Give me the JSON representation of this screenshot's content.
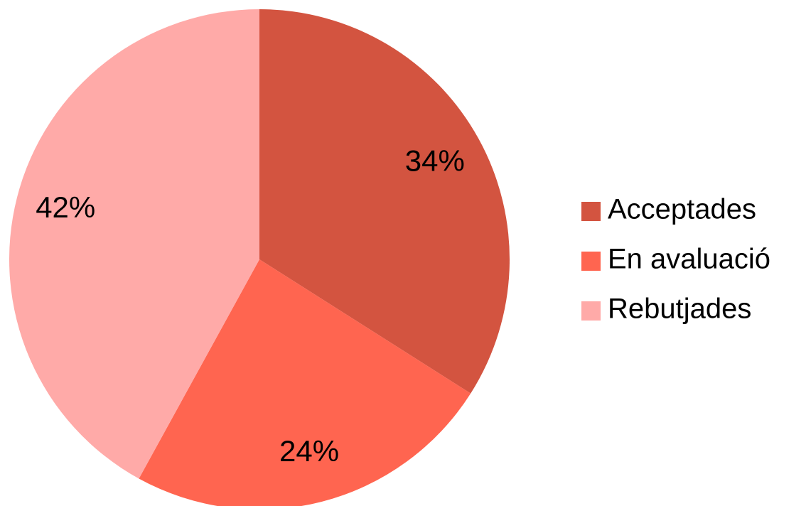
{
  "chart_data": {
    "type": "pie",
    "categories": [
      "Acceptades",
      "En avaluació",
      "Rebutjades"
    ],
    "values": [
      34,
      24,
      42
    ],
    "value_labels": [
      "34%",
      "24%",
      "42%"
    ],
    "colors": [
      "#d35440",
      "#ff6550",
      "#ffaaa8"
    ],
    "start_angle": 0,
    "direction": "clockwise",
    "legend": "right"
  }
}
